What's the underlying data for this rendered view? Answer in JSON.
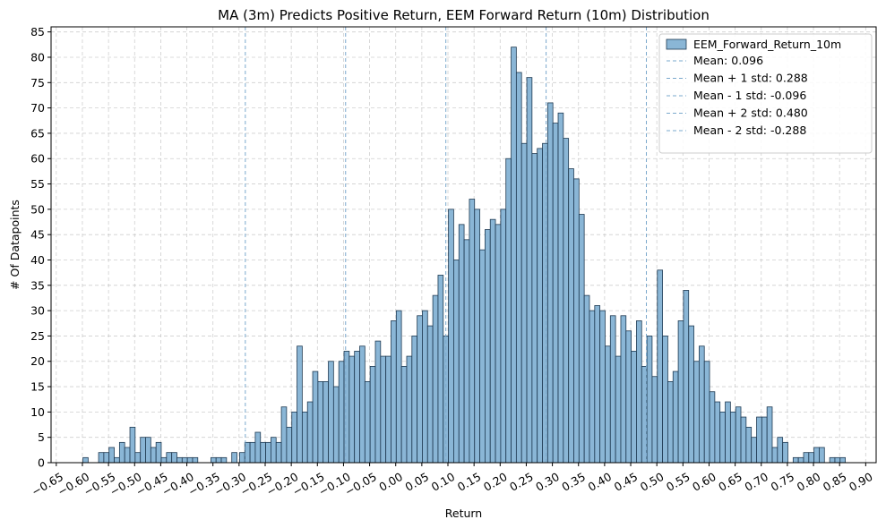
{
  "chart_data": {
    "type": "bar",
    "title": "MA (3m) Predicts Positive Return, EEM Forward Return (10m) Distribution",
    "xlabel": "Return",
    "ylabel": "# Of Datapoints",
    "xlim": [
      -0.66,
      0.92
    ],
    "ylim": [
      0,
      86
    ],
    "grid": true,
    "legend_position": "top-right",
    "bar_color": "#8ab6d6",
    "bar_edge_color": "#1f3a52",
    "line_color": "#7aa8cc",
    "bin_width": 0.00995,
    "x_ticks": [
      "−0.65",
      "−0.60",
      "−0.55",
      "−0.50",
      "−0.45",
      "−0.40",
      "−0.35",
      "−0.30",
      "−0.25",
      "−0.20",
      "−0.15",
      "−0.10",
      "−0.05",
      "0.00",
      "0.05",
      "0.10",
      "0.15",
      "0.20",
      "0.25",
      "0.30",
      "0.35",
      "0.40",
      "0.45",
      "0.50",
      "0.55",
      "0.60",
      "0.65",
      "0.70",
      "0.75",
      "0.80",
      "0.85",
      "0.90"
    ],
    "y_ticks": [
      "0",
      "5",
      "10",
      "15",
      "20",
      "25",
      "30",
      "35",
      "40",
      "45",
      "50",
      "55",
      "60",
      "65",
      "70",
      "75",
      "80",
      "85"
    ],
    "series": [
      {
        "name": "EEM_Forward_Return_10m",
        "bins": [
          [
            -0.594,
            1
          ],
          [
            -0.564,
            2
          ],
          [
            -0.554,
            2
          ],
          [
            -0.544,
            3
          ],
          [
            -0.534,
            1
          ],
          [
            -0.524,
            4
          ],
          [
            -0.514,
            3
          ],
          [
            -0.504,
            7
          ],
          [
            -0.494,
            2
          ],
          [
            -0.484,
            5
          ],
          [
            -0.474,
            5
          ],
          [
            -0.464,
            3
          ],
          [
            -0.454,
            4
          ],
          [
            -0.444,
            1
          ],
          [
            -0.434,
            2
          ],
          [
            -0.424,
            2
          ],
          [
            -0.414,
            1
          ],
          [
            -0.404,
            1
          ],
          [
            -0.394,
            1
          ],
          [
            -0.384,
            1
          ],
          [
            -0.349,
            1
          ],
          [
            -0.339,
            1
          ],
          [
            -0.329,
            1
          ],
          [
            -0.309,
            2
          ],
          [
            -0.294,
            2
          ],
          [
            -0.284,
            4
          ],
          [
            -0.274,
            4
          ],
          [
            -0.264,
            6
          ],
          [
            -0.254,
            4
          ],
          [
            -0.244,
            4
          ],
          [
            -0.234,
            5
          ],
          [
            -0.224,
            4
          ],
          [
            -0.214,
            11
          ],
          [
            -0.204,
            7
          ],
          [
            -0.194,
            10
          ],
          [
            -0.184,
            23
          ],
          [
            -0.174,
            10
          ],
          [
            -0.164,
            12
          ],
          [
            -0.154,
            18
          ],
          [
            -0.144,
            16
          ],
          [
            -0.134,
            16
          ],
          [
            -0.124,
            20
          ],
          [
            -0.114,
            15
          ],
          [
            -0.104,
            20
          ],
          [
            -0.094,
            22
          ],
          [
            -0.084,
            21
          ],
          [
            -0.074,
            22
          ],
          [
            -0.064,
            23
          ],
          [
            -0.054,
            16
          ],
          [
            -0.044,
            19
          ],
          [
            -0.034,
            24
          ],
          [
            -0.024,
            21
          ],
          [
            -0.014,
            21
          ],
          [
            -0.004,
            28
          ],
          [
            0.006,
            30
          ],
          [
            0.016,
            19
          ],
          [
            0.026,
            21
          ],
          [
            0.036,
            25
          ],
          [
            0.046,
            29
          ],
          [
            0.056,
            30
          ],
          [
            0.066,
            27
          ],
          [
            0.076,
            33
          ],
          [
            0.086,
            37
          ],
          [
            0.096,
            25
          ],
          [
            0.106,
            50
          ],
          [
            0.116,
            40
          ],
          [
            0.126,
            47
          ],
          [
            0.136,
            44
          ],
          [
            0.146,
            52
          ],
          [
            0.156,
            50
          ],
          [
            0.166,
            42
          ],
          [
            0.176,
            46
          ],
          [
            0.186,
            48
          ],
          [
            0.196,
            47
          ],
          [
            0.206,
            50
          ],
          [
            0.216,
            60
          ],
          [
            0.226,
            82
          ],
          [
            0.236,
            77
          ],
          [
            0.246,
            63
          ],
          [
            0.256,
            76
          ],
          [
            0.266,
            61
          ],
          [
            0.276,
            62
          ],
          [
            0.286,
            63
          ],
          [
            0.296,
            71
          ],
          [
            0.306,
            67
          ],
          [
            0.316,
            69
          ],
          [
            0.326,
            64
          ],
          [
            0.336,
            58
          ],
          [
            0.346,
            56
          ],
          [
            0.356,
            49
          ],
          [
            0.366,
            33
          ],
          [
            0.376,
            30
          ],
          [
            0.386,
            31
          ],
          [
            0.396,
            30
          ],
          [
            0.406,
            23
          ],
          [
            0.416,
            29
          ],
          [
            0.426,
            21
          ],
          [
            0.436,
            29
          ],
          [
            0.446,
            26
          ],
          [
            0.456,
            22
          ],
          [
            0.466,
            28
          ],
          [
            0.476,
            19
          ],
          [
            0.486,
            25
          ],
          [
            0.496,
            17
          ],
          [
            0.506,
            38
          ],
          [
            0.516,
            25
          ],
          [
            0.526,
            16
          ],
          [
            0.536,
            18
          ],
          [
            0.546,
            28
          ],
          [
            0.556,
            34
          ],
          [
            0.566,
            27
          ],
          [
            0.576,
            20
          ],
          [
            0.586,
            23
          ],
          [
            0.596,
            20
          ],
          [
            0.606,
            14
          ],
          [
            0.616,
            12
          ],
          [
            0.626,
            10
          ],
          [
            0.636,
            12
          ],
          [
            0.646,
            10
          ],
          [
            0.656,
            11
          ],
          [
            0.666,
            9
          ],
          [
            0.676,
            7
          ],
          [
            0.686,
            5
          ],
          [
            0.696,
            9
          ],
          [
            0.706,
            9
          ],
          [
            0.716,
            11
          ],
          [
            0.726,
            3
          ],
          [
            0.736,
            5
          ],
          [
            0.746,
            4
          ],
          [
            0.766,
            1
          ],
          [
            0.776,
            1
          ],
          [
            0.786,
            2
          ],
          [
            0.796,
            2
          ],
          [
            0.806,
            3
          ],
          [
            0.816,
            3
          ],
          [
            0.836,
            1
          ],
          [
            0.846,
            1
          ],
          [
            0.856,
            1
          ]
        ]
      }
    ],
    "reference_lines": [
      {
        "label": "Mean: 0.096",
        "x": 0.096
      },
      {
        "label": "Mean + 1 std: 0.288",
        "x": 0.288
      },
      {
        "label": "Mean - 1 std: -0.096",
        "x": -0.096
      },
      {
        "label": "Mean + 2 std: 0.480",
        "x": 0.48
      },
      {
        "label": "Mean - 2 std: -0.288",
        "x": -0.288
      }
    ]
  }
}
